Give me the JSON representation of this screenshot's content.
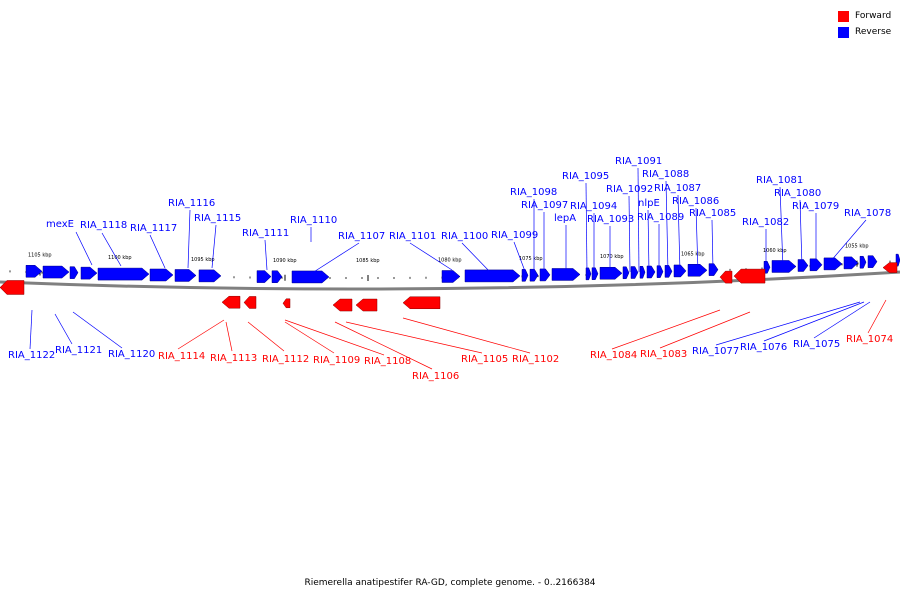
{
  "colors": {
    "forward": "#ff0000",
    "reverse": "#0000ff",
    "backbone": "#808080"
  },
  "legend": {
    "forward_label": "Forward",
    "reverse_label": "Reverse"
  },
  "caption": "Riemerella anatipestifer RA-GD, complete genome. - 0..2166384",
  "scale": {
    "ticks": [
      "1105 kbp",
      "1100 kbp",
      "1095 kbp",
      "1090 kbp",
      "1085 kbp",
      "1080 kbp",
      "1075 kbp",
      "1070 kbp",
      "1065 kbp",
      "1060 kbp",
      "1055 kbp"
    ]
  },
  "genes": {
    "reverse": [
      "mexE",
      "RIA_1118",
      "RIA_1117",
      "RIA_1116",
      "RIA_1115",
      "RIA_1111",
      "RIA_1110",
      "RIA_1107",
      "RIA_1101",
      "RIA_1100",
      "RIA_1099",
      "RIA_1098",
      "RIA_1097",
      "lepA",
      "RIA_1095",
      "RIA_1094",
      "RIA_1093",
      "RIA_1092",
      "RIA_1091",
      "nlpE",
      "RIA_1089",
      "RIA_1088",
      "RIA_1087",
      "RIA_1086",
      "RIA_1085",
      "RIA_1082",
      "RIA_1081",
      "RIA_1080",
      "RIA_1079",
      "RIA_1078",
      "RIA_1122",
      "RIA_1121",
      "RIA_1120",
      "RIA_1077",
      "RIA_1076",
      "RIA_1075"
    ],
    "forward": [
      "RIA_1114",
      "RIA_1113",
      "RIA_1112",
      "RIA_1109",
      "RIA_1108",
      "RIA_1106",
      "RIA_1105",
      "RIA_1102",
      "RIA_1084",
      "RIA_1083",
      "RIA_1074"
    ]
  }
}
